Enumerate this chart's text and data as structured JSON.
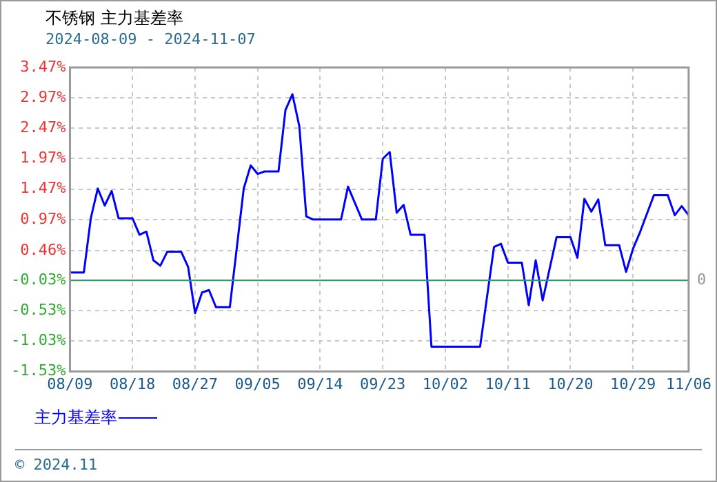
{
  "chart_data": {
    "type": "line",
    "title": "不锈钢  主力基差率",
    "subtitle": "2024-08-09 - 2024-11-07",
    "x": [
      "2024-08-09",
      "2024-08-11",
      "2024-08-12",
      "2024-08-13",
      "2024-08-14",
      "2024-08-15",
      "2024-08-16",
      "2024-08-18",
      "2024-08-19",
      "2024-08-20",
      "2024-08-21",
      "2024-08-22",
      "2024-08-23",
      "2024-08-25",
      "2024-08-26",
      "2024-08-27",
      "2024-08-28",
      "2024-08-29",
      "2024-08-30",
      "2024-09-01",
      "2024-09-03",
      "2024-09-04",
      "2024-09-05",
      "2024-09-06",
      "2024-09-08",
      "2024-09-09",
      "2024-09-10",
      "2024-09-11",
      "2024-09-12",
      "2024-09-13",
      "2024-09-17",
      "2024-09-18",
      "2024-09-20",
      "2024-09-22",
      "2024-09-23",
      "2024-09-24",
      "2024-09-25",
      "2024-09-26",
      "2024-09-27",
      "2024-09-29",
      "2024-09-30",
      "2024-10-07",
      "2024-10-09",
      "2024-10-10",
      "2024-10-11",
      "2024-10-13",
      "2024-10-14",
      "2024-10-15",
      "2024-10-16",
      "2024-10-18",
      "2024-10-20",
      "2024-10-21",
      "2024-10-22",
      "2024-10-23",
      "2024-10-24",
      "2024-10-25",
      "2024-10-27",
      "2024-10-28",
      "2024-10-29",
      "2024-10-30",
      "2024-11-01",
      "2024-11-03",
      "2024-11-04",
      "2024-11-05",
      "2024-11-06"
    ],
    "series": [
      {
        "name": "主力基差率",
        "color": "#0000ff",
        "values": [
          0.1,
          0.1,
          0.99,
          1.48,
          1.2,
          1.44,
          0.99,
          0.99,
          0.72,
          0.77,
          0.3,
          0.21,
          0.44,
          0.44,
          0.19,
          -0.57,
          -0.23,
          -0.19,
          -0.47,
          -0.47,
          1.48,
          1.86,
          1.72,
          1.76,
          1.76,
          2.77,
          3.03,
          2.5,
          1.02,
          0.97,
          0.97,
          1.51,
          0.97,
          0.97,
          1.97,
          2.08,
          1.08,
          1.21,
          0.72,
          0.72,
          -1.12,
          -1.12,
          0.52,
          0.57,
          0.26,
          0.26,
          -0.44,
          0.3,
          -0.36,
          0.68,
          0.68,
          0.34,
          1.31,
          1.1,
          1.3,
          0.55,
          0.55,
          0.11,
          0.49,
          0.76,
          1.37,
          1.37,
          1.04,
          1.19,
          1.04
        ]
      }
    ],
    "xlim": [
      "2024-08-09",
      "2024-11-06"
    ],
    "xticks": [
      {
        "value": "2024-08-09",
        "label": "08/09"
      },
      {
        "value": "2024-08-18",
        "label": "08/18"
      },
      {
        "value": "2024-08-27",
        "label": "08/27"
      },
      {
        "value": "2024-09-05",
        "label": "09/05"
      },
      {
        "value": "2024-09-14",
        "label": "09/14"
      },
      {
        "value": "2024-09-23",
        "label": "09/23"
      },
      {
        "value": "2024-10-02",
        "label": "10/02"
      },
      {
        "value": "2024-10-11",
        "label": "10/11"
      },
      {
        "value": "2024-10-20",
        "label": "10/20"
      },
      {
        "value": "2024-10-29",
        "label": "10/29"
      },
      {
        "value": "2024-11-06",
        "label": "11/06"
      }
    ],
    "ylim": [
      -1.53,
      3.47
    ],
    "yticks": [
      {
        "value": -1.53,
        "label": "-1.53%"
      },
      {
        "value": -1.03,
        "label": "-1.03%"
      },
      {
        "value": -0.53,
        "label": "-0.53%"
      },
      {
        "value": -0.03,
        "label": "-0.03%"
      },
      {
        "value": 0.46,
        "label": "0.46%"
      },
      {
        "value": 0.97,
        "label": "0.97%"
      },
      {
        "value": 1.47,
        "label": "1.47%"
      },
      {
        "value": 1.97,
        "label": "1.97%"
      },
      {
        "value": 2.47,
        "label": "2.47%"
      },
      {
        "value": 2.97,
        "label": "2.97%"
      },
      {
        "value": 3.47,
        "label": "3.47%"
      }
    ],
    "ref_lines": [
      {
        "axis": "y",
        "value": -0.03,
        "label": "0",
        "color": "#339966"
      }
    ],
    "annotations": [
      "© 2024.11"
    ],
    "grid": true,
    "legend": "bottom left",
    "marker": "none",
    "line_style": "solid"
  }
}
